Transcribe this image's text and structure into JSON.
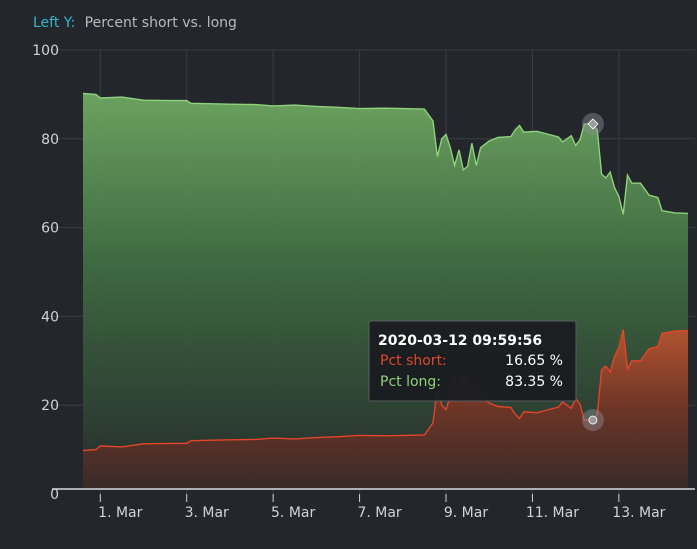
{
  "header": {
    "axis_prefix": "Left Y:",
    "axis_title": "Percent short vs. long"
  },
  "colors": {
    "background": "#23262b",
    "accent": "#35b6c9",
    "long_line": "#8fd17c",
    "short_line": "#e2452a",
    "grid": "#3a3e44",
    "axis_text": "#cfd3d8"
  },
  "tooltip": {
    "timestamp": "2020-03-12 09:59:56",
    "rows": [
      {
        "label": "Pct short:",
        "value": "16.65 %"
      },
      {
        "label": "Pct long:",
        "value": "83.35 %"
      }
    ]
  },
  "chart_data": {
    "type": "area",
    "title": "",
    "ylabel": "Percent short vs. long",
    "xlabel": "",
    "ylim": [
      0,
      100
    ],
    "y_ticks": [
      "0",
      "20",
      "40",
      "60",
      "80",
      "100"
    ],
    "x_tick_labels": [
      "1. Mar",
      "3. Mar",
      "5. Mar",
      "7. Mar",
      "9. Mar",
      "11. Mar",
      "13. Mar"
    ],
    "x_range_days": [
      0.6,
      14.6
    ],
    "x_tick_days": [
      1,
      3,
      5,
      7,
      9,
      11,
      13
    ],
    "grid": true,
    "highlight_day": 12.4,
    "series": [
      {
        "name": "Pct long",
        "color": "#8fd17c",
        "points": [
          [
            0.6,
            90.2
          ],
          [
            0.9,
            90.0
          ],
          [
            1.0,
            89.2
          ],
          [
            1.5,
            89.4
          ],
          [
            2.0,
            88.7
          ],
          [
            2.6,
            88.6
          ],
          [
            3.0,
            88.6
          ],
          [
            3.1,
            88.0
          ],
          [
            4.0,
            87.8
          ],
          [
            4.6,
            87.7
          ],
          [
            5.0,
            87.4
          ],
          [
            5.5,
            87.6
          ],
          [
            6.0,
            87.3
          ],
          [
            6.5,
            87.1
          ],
          [
            7.0,
            86.8
          ],
          [
            7.6,
            86.9
          ],
          [
            8.0,
            86.8
          ],
          [
            8.5,
            86.7
          ],
          [
            8.7,
            84.0
          ],
          [
            8.8,
            76.0
          ],
          [
            8.9,
            80.0
          ],
          [
            9.0,
            81.0
          ],
          [
            9.1,
            78.0
          ],
          [
            9.2,
            74.0
          ],
          [
            9.3,
            77.5
          ],
          [
            9.4,
            73.0
          ],
          [
            9.5,
            73.8
          ],
          [
            9.6,
            79.0
          ],
          [
            9.7,
            74.0
          ],
          [
            9.8,
            78.0
          ],
          [
            10.0,
            79.5
          ],
          [
            10.2,
            80.3
          ],
          [
            10.5,
            80.5
          ],
          [
            10.6,
            82.0
          ],
          [
            10.7,
            83.0
          ],
          [
            10.8,
            81.5
          ],
          [
            11.1,
            81.7
          ],
          [
            11.3,
            81.2
          ],
          [
            11.6,
            80.4
          ],
          [
            11.7,
            79.3
          ],
          [
            11.9,
            80.7
          ],
          [
            12.0,
            78.5
          ],
          [
            12.1,
            79.8
          ],
          [
            12.2,
            83.3
          ],
          [
            12.4,
            83.35
          ],
          [
            12.5,
            82.0
          ],
          [
            12.6,
            72.0
          ],
          [
            12.7,
            71.2
          ],
          [
            12.8,
            72.5
          ],
          [
            12.9,
            69.0
          ],
          [
            13.0,
            67.0
          ],
          [
            13.1,
            63.0
          ],
          [
            13.2,
            71.8
          ],
          [
            13.3,
            70.0
          ],
          [
            13.5,
            70.0
          ],
          [
            13.7,
            67.3
          ],
          [
            13.9,
            66.8
          ],
          [
            14.0,
            63.8
          ],
          [
            14.3,
            63.3
          ],
          [
            14.6,
            63.2
          ]
        ]
      },
      {
        "name": "Pct short",
        "color": "#e2452a",
        "points": [
          [
            0.6,
            9.8
          ],
          [
            0.9,
            10.0
          ],
          [
            1.0,
            10.8
          ],
          [
            1.5,
            10.6
          ],
          [
            2.0,
            11.3
          ],
          [
            2.6,
            11.4
          ],
          [
            3.0,
            11.4
          ],
          [
            3.1,
            12.0
          ],
          [
            4.0,
            12.2
          ],
          [
            4.6,
            12.3
          ],
          [
            5.0,
            12.6
          ],
          [
            5.5,
            12.4
          ],
          [
            6.0,
            12.7
          ],
          [
            6.5,
            12.9
          ],
          [
            7.0,
            13.2
          ],
          [
            7.6,
            13.1
          ],
          [
            8.0,
            13.2
          ],
          [
            8.5,
            13.3
          ],
          [
            8.7,
            16.0
          ],
          [
            8.8,
            24.0
          ],
          [
            8.9,
            20.0
          ],
          [
            9.0,
            19.0
          ],
          [
            9.1,
            22.0
          ],
          [
            9.2,
            26.0
          ],
          [
            9.3,
            22.5
          ],
          [
            9.4,
            27.0
          ],
          [
            9.5,
            26.2
          ],
          [
            9.6,
            21.0
          ],
          [
            9.7,
            26.0
          ],
          [
            9.8,
            22.0
          ],
          [
            10.0,
            20.5
          ],
          [
            10.2,
            19.7
          ],
          [
            10.5,
            19.5
          ],
          [
            10.6,
            18.0
          ],
          [
            10.7,
            17.0
          ],
          [
            10.8,
            18.5
          ],
          [
            11.1,
            18.3
          ],
          [
            11.3,
            18.8
          ],
          [
            11.6,
            19.6
          ],
          [
            11.7,
            20.7
          ],
          [
            11.9,
            19.3
          ],
          [
            12.0,
            21.5
          ],
          [
            12.1,
            20.2
          ],
          [
            12.2,
            16.7
          ],
          [
            12.4,
            16.65
          ],
          [
            12.5,
            18.0
          ],
          [
            12.6,
            28.0
          ],
          [
            12.7,
            28.8
          ],
          [
            12.8,
            27.5
          ],
          [
            12.9,
            31.0
          ],
          [
            13.0,
            33.0
          ],
          [
            13.1,
            37.0
          ],
          [
            13.2,
            28.2
          ],
          [
            13.3,
            30.0
          ],
          [
            13.5,
            30.0
          ],
          [
            13.7,
            32.7
          ],
          [
            13.9,
            33.2
          ],
          [
            14.0,
            36.2
          ],
          [
            14.3,
            36.7
          ],
          [
            14.6,
            36.8
          ]
        ]
      }
    ]
  }
}
